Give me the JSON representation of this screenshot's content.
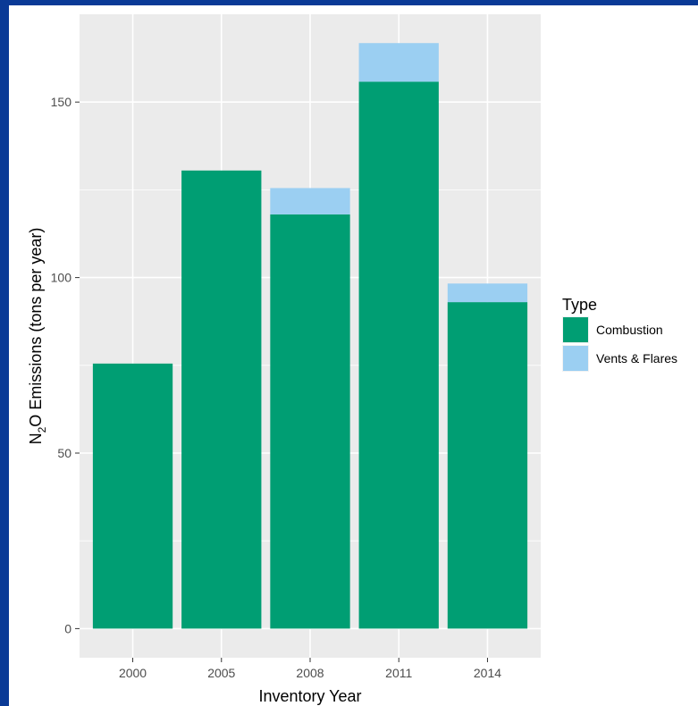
{
  "chart_data": {
    "type": "bar",
    "stacked": true,
    "categories": [
      "2000",
      "2005",
      "2008",
      "2011",
      "2014"
    ],
    "series": [
      {
        "name": "Combustion",
        "values": [
          75.5,
          130.5,
          118,
          155.8,
          93
        ],
        "color": "#009e73"
      },
      {
        "name": "Vents & Flares",
        "values": [
          0,
          0,
          7.5,
          11,
          5.3
        ],
        "color": "#9bcff2"
      }
    ],
    "xlabel": "Inventory Year",
    "ylabel": {
      "prefix": "N",
      "subscript": "2",
      "suffix": "O Emissions (tons per year)"
    },
    "yticks": [
      0,
      50,
      100,
      150
    ],
    "ylim": [
      -8.3,
      175
    ],
    "grid": true,
    "legend": {
      "title": "Type",
      "position": "right"
    },
    "colors": {
      "panel": "#ebebeb",
      "grid": "#ffffff",
      "background": "#ffffff",
      "frame": "#0a3a96"
    }
  }
}
